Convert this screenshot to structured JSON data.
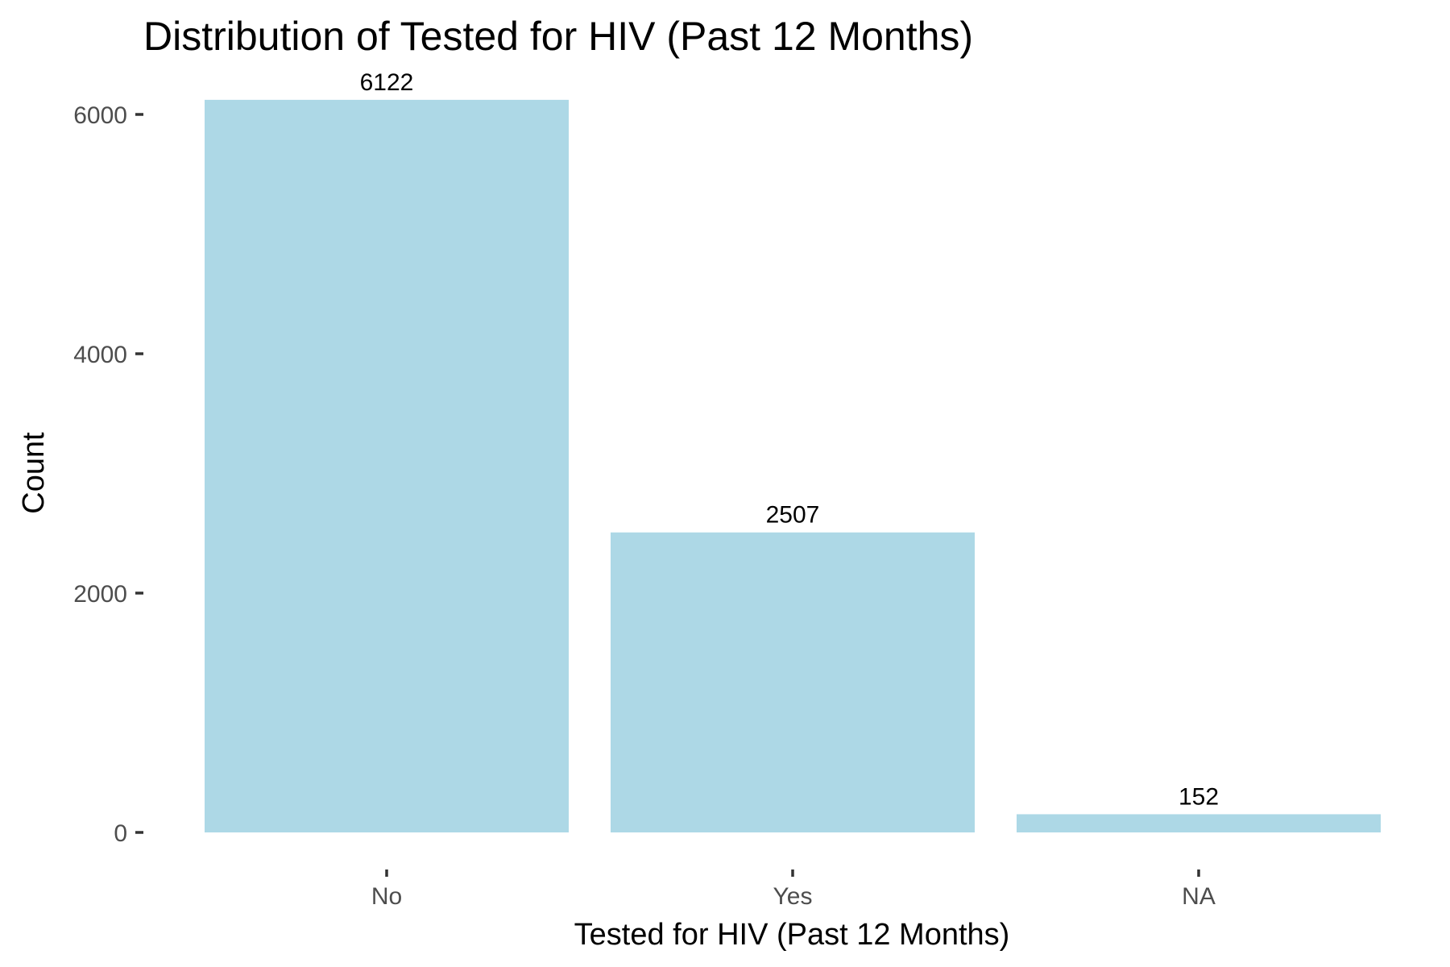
{
  "chart_data": {
    "type": "bar",
    "title": "Distribution of Tested for HIV (Past 12 Months)",
    "xlabel": "Tested for HIV (Past 12 Months)",
    "ylabel": "Count",
    "categories": [
      "No",
      "Yes",
      "NA"
    ],
    "values": [
      6122,
      2507,
      152
    ],
    "data_labels": [
      "6122",
      "2507",
      "152"
    ],
    "yticks": [
      0,
      2000,
      4000,
      6000
    ],
    "ytick_labels": [
      "0",
      "2000",
      "4000",
      "6000"
    ],
    "ylim": [
      0,
      6428
    ],
    "bar_color": "#add8e6",
    "grid": false,
    "legend": "none"
  }
}
